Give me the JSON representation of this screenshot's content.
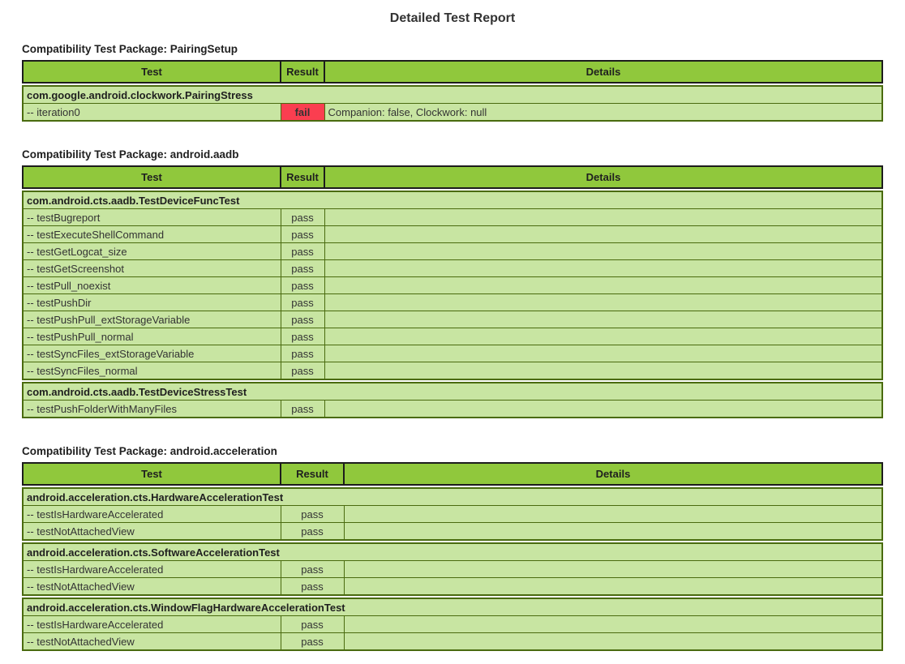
{
  "page": {
    "title": "Detailed Test Report"
  },
  "table_headers": {
    "test": "Test",
    "result": "Result",
    "details": "Details"
  },
  "colors": {
    "header_bg": "#90C83C",
    "row_bg": "#C8E5A2",
    "fail_bg": "#FA3E50",
    "border_dark": "#1C1C1C",
    "border_green": "#4A6B0F"
  },
  "packages": [
    {
      "heading": "Compatibility Test Package: PairingSetup",
      "classes": [
        {
          "name": "com.google.android.clockwork.PairingStress",
          "tests": [
            {
              "name": "-- iteration0",
              "result": "fail",
              "details": "Companion: false, Clockwork: null"
            }
          ]
        }
      ]
    },
    {
      "heading": "Compatibility Test Package: android.aadb",
      "classes": [
        {
          "name": "com.android.cts.aadb.TestDeviceFuncTest",
          "tests": [
            {
              "name": "-- testBugreport",
              "result": "pass",
              "details": ""
            },
            {
              "name": "-- testExecuteShellCommand",
              "result": "pass",
              "details": ""
            },
            {
              "name": "-- testGetLogcat_size",
              "result": "pass",
              "details": ""
            },
            {
              "name": "-- testGetScreenshot",
              "result": "pass",
              "details": ""
            },
            {
              "name": "-- testPull_noexist",
              "result": "pass",
              "details": ""
            },
            {
              "name": "-- testPushDir",
              "result": "pass",
              "details": ""
            },
            {
              "name": "-- testPushPull_extStorageVariable",
              "result": "pass",
              "details": ""
            },
            {
              "name": "-- testPushPull_normal",
              "result": "pass",
              "details": ""
            },
            {
              "name": "-- testSyncFiles_extStorageVariable",
              "result": "pass",
              "details": ""
            },
            {
              "name": "-- testSyncFiles_normal",
              "result": "pass",
              "details": ""
            }
          ]
        },
        {
          "name": "com.android.cts.aadb.TestDeviceStressTest",
          "tests": [
            {
              "name": "-- testPushFolderWithManyFiles",
              "result": "pass",
              "details": ""
            }
          ]
        }
      ]
    },
    {
      "heading": "Compatibility Test Package: android.acceleration",
      "classes": [
        {
          "name": "android.acceleration.cts.HardwareAccelerationTest",
          "tests": [
            {
              "name": "-- testIsHardwareAccelerated",
              "result": "pass",
              "details": ""
            },
            {
              "name": "-- testNotAttachedView",
              "result": "pass",
              "details": ""
            }
          ]
        },
        {
          "name": "android.acceleration.cts.SoftwareAccelerationTest",
          "tests": [
            {
              "name": "-- testIsHardwareAccelerated",
              "result": "pass",
              "details": ""
            },
            {
              "name": "-- testNotAttachedView",
              "result": "pass",
              "details": ""
            }
          ]
        },
        {
          "name": "android.acceleration.cts.WindowFlagHardwareAccelerationTest",
          "tests": [
            {
              "name": "-- testIsHardwareAccelerated",
              "result": "pass",
              "details": ""
            },
            {
              "name": "-- testNotAttachedView",
              "result": "pass",
              "details": ""
            }
          ]
        }
      ]
    }
  ]
}
